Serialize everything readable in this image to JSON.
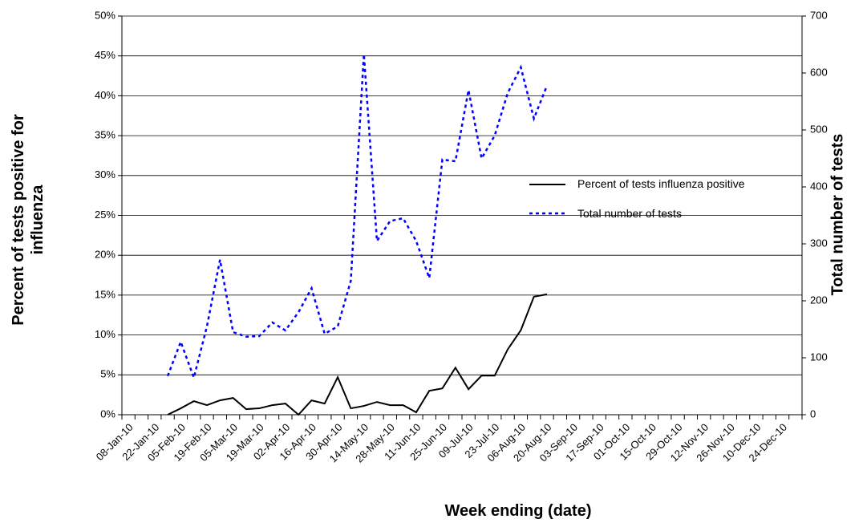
{
  "chart_data": {
    "type": "line",
    "x_label": "Week ending (date)",
    "y_label": "Percent of tests positive for influenza",
    "y2_label": "Total number of tests",
    "categories": [
      "08-Jan-10",
      null,
      "22-Jan-10",
      null,
      "05-Feb-10",
      null,
      "19-Feb-10",
      null,
      "05-Mar-10",
      null,
      "19-Mar-10",
      null,
      "02-Apr-10",
      null,
      "16-Apr-10",
      null,
      "30-Apr-10",
      null,
      "14-May-10",
      null,
      "28-May-10",
      null,
      "11-Jun-10",
      null,
      "25-Jun-10",
      null,
      "09-Jul-10",
      null,
      "23-Jul-10",
      null,
      "06-Aug-10",
      null,
      "20-Aug-10",
      null,
      "03-Sep-10",
      null,
      "17-Sep-10",
      null,
      "01-Oct-10",
      null,
      "15-Oct-10",
      null,
      "29-Oct-10",
      null,
      "12-Nov-10",
      null,
      "26-Nov-10",
      null,
      "10-Dec-10",
      null,
      "24-Dec-10",
      null
    ],
    "series": [
      {
        "name": "Percent of tests influenza positive",
        "color": "#000000",
        "dashed": false,
        "values": [
          null,
          null,
          null,
          0,
          0.8,
          1.7,
          1.2,
          1.8,
          2.1,
          0.7,
          0.8,
          1.2,
          1.4,
          0,
          1.8,
          1.4,
          4.7,
          0.8,
          1.1,
          1.6,
          1.2,
          1.2,
          0.3,
          3.0,
          3.3,
          5.9,
          3.2,
          4.9,
          4.9,
          8.2,
          10.6,
          14.8,
          15.1,
          null,
          null,
          null,
          null,
          null,
          null,
          null,
          null,
          null,
          null,
          null,
          null,
          null,
          null,
          null,
          null,
          null,
          null,
          null
        ]
      },
      {
        "name": "Total number of tests",
        "color": "#0000ff",
        "dashed": true,
        "axis": "y2",
        "values": [
          null,
          null,
          null,
          68,
          128,
          65,
          155,
          272,
          145,
          137,
          138,
          162,
          148,
          180,
          222,
          142,
          155,
          235,
          633,
          305,
          340,
          345,
          305,
          240,
          448,
          445,
          570,
          450,
          490,
          565,
          610,
          520,
          578,
          null,
          null,
          null,
          null,
          null,
          null,
          null,
          null,
          null,
          null,
          null,
          null,
          null,
          null,
          null,
          null,
          null,
          null,
          null
        ]
      }
    ],
    "ylim": [
      0,
      50
    ],
    "yticks": [
      {
        "value": 0,
        "label": "0%"
      },
      {
        "value": 5,
        "label": "5%"
      },
      {
        "value": 10,
        "label": "10%"
      },
      {
        "value": 15,
        "label": "15%"
      },
      {
        "value": 20,
        "label": "20%"
      },
      {
        "value": 25,
        "label": "25%"
      },
      {
        "value": 30,
        "label": "30%"
      },
      {
        "value": 35,
        "label": "35%"
      },
      {
        "value": 40,
        "label": "40%"
      },
      {
        "value": 45,
        "label": "45%"
      },
      {
        "value": 50,
        "label": "50%"
      }
    ],
    "y2lim": [
      0,
      700
    ],
    "y2ticks": [
      0,
      100,
      200,
      300,
      400,
      500,
      600,
      700
    ],
    "grid": true
  }
}
